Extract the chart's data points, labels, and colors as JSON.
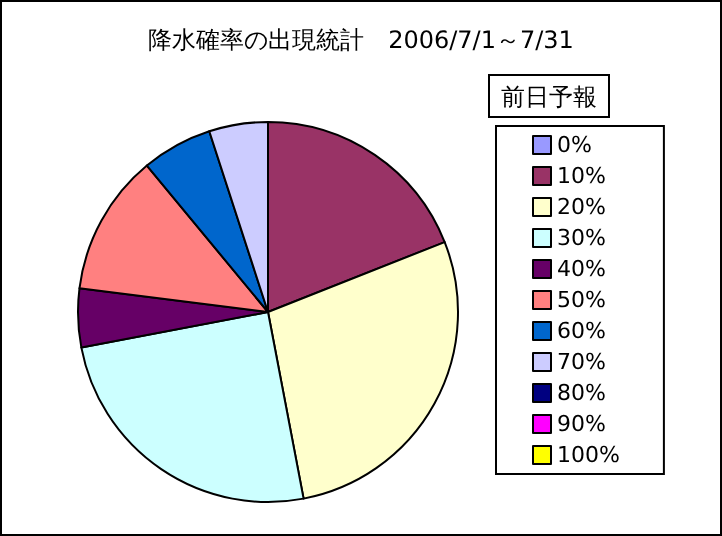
{
  "chart_data": {
    "type": "pie",
    "title": "降水確率の出現統計　2006/7/1～7/31",
    "legend_title": "前日予報",
    "legend": "right",
    "categories": [
      "0%",
      "10%",
      "20%",
      "30%",
      "40%",
      "50%",
      "60%",
      "70%",
      "80%",
      "90%",
      "100%"
    ],
    "values": [
      0,
      19,
      28,
      25,
      5,
      12,
      6,
      5,
      0,
      0,
      0
    ],
    "colors": [
      "#9999ff",
      "#993366",
      "#ffffcc",
      "#ccffff",
      "#660066",
      "#ff8080",
      "#0066cc",
      "#ccccff",
      "#000080",
      "#ff00ff",
      "#ffff00"
    ]
  }
}
